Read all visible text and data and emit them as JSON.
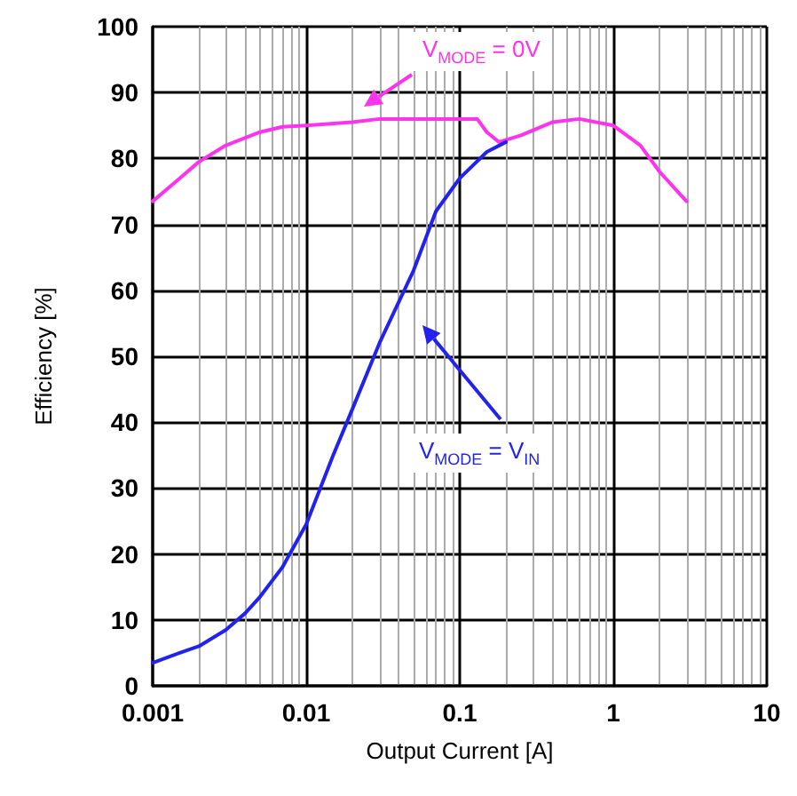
{
  "chart_data": {
    "type": "line",
    "xlabel": "Output Current [A]",
    "ylabel": "Efficiency [%]",
    "log": "x",
    "grid": true,
    "marker": "none",
    "line_style": "solid",
    "xlim": [
      0.001,
      10
    ],
    "xticks": [
      0.001,
      0.01,
      0.1,
      1,
      10
    ],
    "ylim": [
      0,
      100
    ],
    "yticks": [
      0,
      10,
      20,
      30,
      40,
      50,
      60,
      70,
      80,
      90,
      100
    ],
    "series": [
      {
        "color": "#ff33ee",
        "x": [
          0.001,
          0.0015,
          0.002,
          0.003,
          0.005,
          0.007,
          0.01,
          0.02,
          0.03,
          0.05,
          0.1,
          0.13,
          0.15,
          0.18,
          0.25,
          0.4,
          0.6,
          1,
          1.5,
          2,
          3
        ],
        "values": [
          73.5,
          77,
          79.5,
          82,
          84,
          84.8,
          85,
          85.5,
          86,
          86,
          86,
          86,
          84,
          82.5,
          83.5,
          85.5,
          86,
          85,
          82,
          78,
          73.5
        ]
      },
      {
        "color": "#2222ee",
        "x": [
          0.001,
          0.0015,
          0.002,
          0.003,
          0.004,
          0.005,
          0.007,
          0.01,
          0.015,
          0.02,
          0.03,
          0.05,
          0.07,
          0.1,
          0.15,
          0.2
        ],
        "values": [
          3.5,
          5,
          6,
          8.5,
          11,
          13.5,
          18,
          24.5,
          35,
          42,
          52,
          63,
          72,
          77,
          81,
          82.5
        ]
      }
    ],
    "annotations": [
      "V$_{MODE}$ = 0V",
      "V$_{MODE}$ = V$_{IN}$"
    ]
  }
}
